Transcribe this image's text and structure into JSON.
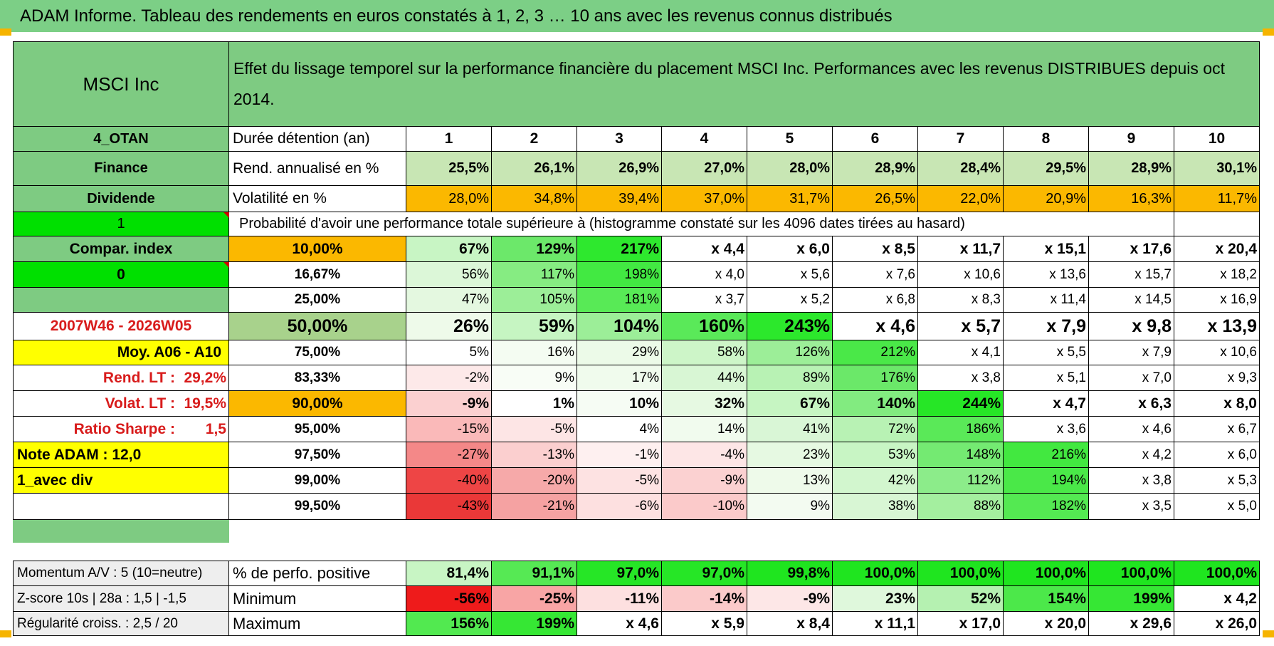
{
  "title": "ADAM Informe. Tableau des rendements en euros constatés à 1, 2, 3 … 10 ans avec les revenus connus distribués",
  "header": {
    "left": "MSCI Inc",
    "right": "Effet du lissage temporel sur la performance financière du placement MSCI Inc. Performances avec les revenus DISTRIBUES depuis oct 2014."
  },
  "side_labels": {
    "code": "4_OTAN",
    "sector": "Finance",
    "dividend": "Dividende",
    "one": "1",
    "compar": "Compar. index",
    "zero": "0",
    "blank": "",
    "period": "2007W46 - 2026W05",
    "moy": "Moy. A06 - A10",
    "rend_lt_label": "Rend. LT :",
    "rend_lt_value": "29,2%",
    "volat_lt_label": "Volat. LT :",
    "volat_lt_value": "19,5%",
    "sharpe_label": "Ratio Sharpe :",
    "sharpe_value": "1,5",
    "note": "Note ADAM : 12,0",
    "avec_div": "1_avec div"
  },
  "row_labels": {
    "duration": "Durée détention (an)",
    "rend": "Rend. annualisé en %",
    "volat": "Volatilité en %",
    "proba": "Probabilité d'avoir une performance totale supérieure à (histogramme constaté sur les 4096 dates tirées au hasard)"
  },
  "years": [
    "1",
    "2",
    "3",
    "4",
    "5",
    "6",
    "7",
    "8",
    "9",
    "10"
  ],
  "rend": [
    "25,5%",
    "26,1%",
    "26,9%",
    "27,0%",
    "28,0%",
    "28,9%",
    "28,4%",
    "29,5%",
    "28,9%",
    "30,1%"
  ],
  "volat": [
    "28,0%",
    "34,8%",
    "39,4%",
    "37,0%",
    "31,7%",
    "26,5%",
    "22,0%",
    "20,9%",
    "16,3%",
    "11,7%"
  ],
  "prob_rows": [
    {
      "p": "10,00%",
      "v": [
        "67%",
        "129%",
        "217%",
        "x 4,4",
        "x 6,0",
        "x 8,5",
        "x 11,7",
        "x 15,1",
        "x 17,6",
        "x 20,4"
      ]
    },
    {
      "p": "16,67%",
      "v": [
        "56%",
        "117%",
        "198%",
        "x 4,0",
        "x 5,6",
        "x 7,6",
        "x 10,6",
        "x 13,6",
        "x 15,7",
        "x 18,2"
      ]
    },
    {
      "p": "25,00%",
      "v": [
        "47%",
        "105%",
        "181%",
        "x 3,7",
        "x 5,2",
        "x 6,8",
        "x 8,3",
        "x 11,4",
        "x 14,5",
        "x 16,9"
      ]
    },
    {
      "p": "50,00%",
      "v": [
        "26%",
        "59%",
        "104%",
        "160%",
        "243%",
        "x 4,6",
        "x 5,7",
        "x 7,9",
        "x 9,8",
        "x 13,9"
      ]
    },
    {
      "p": "75,00%",
      "v": [
        "5%",
        "16%",
        "29%",
        "58%",
        "126%",
        "212%",
        "x 4,1",
        "x 5,5",
        "x 7,9",
        "x 10,6"
      ]
    },
    {
      "p": "83,33%",
      "v": [
        "-2%",
        "9%",
        "17%",
        "44%",
        "89%",
        "176%",
        "x 3,8",
        "x 5,1",
        "x 7,0",
        "x 9,3"
      ]
    },
    {
      "p": "90,00%",
      "v": [
        "-9%",
        "1%",
        "10%",
        "32%",
        "67%",
        "140%",
        "244%",
        "x 4,7",
        "x 6,3",
        "x 8,0"
      ]
    },
    {
      "p": "95,00%",
      "v": [
        "-15%",
        "-5%",
        "4%",
        "14%",
        "41%",
        "72%",
        "186%",
        "x 3,6",
        "x 4,6",
        "x 6,7"
      ]
    },
    {
      "p": "97,50%",
      "v": [
        "-27%",
        "-13%",
        "-1%",
        "-4%",
        "23%",
        "53%",
        "148%",
        "216%",
        "x 4,2",
        "x 6,0"
      ]
    },
    {
      "p": "99,00%",
      "v": [
        "-40%",
        "-20%",
        "-5%",
        "-9%",
        "13%",
        "42%",
        "112%",
        "194%",
        "x 3,8",
        "x 5,3"
      ]
    },
    {
      "p": "99,50%",
      "v": [
        "-43%",
        "-21%",
        "-6%",
        "-10%",
        "9%",
        "38%",
        "88%",
        "182%",
        "x 3,5",
        "x 5,0"
      ]
    }
  ],
  "bottom_rows": [
    {
      "side": "Momentum A/V : 5 (10=neutre)",
      "label": "% de perfo. positive",
      "v": [
        "81,4%",
        "91,1%",
        "97,0%",
        "97,0%",
        "99,8%",
        "100,0%",
        "100,0%",
        "100,0%",
        "100,0%",
        "100,0%"
      ]
    },
    {
      "side": "Z-score 10s | 28a : 1,5 | -1,5",
      "label": "Minimum",
      "v": [
        "-56%",
        "-25%",
        "-11%",
        "-14%",
        "-9%",
        "23%",
        "52%",
        "154%",
        "199%",
        "x 4,2"
      ]
    },
    {
      "side": "Régularité croiss. : 2,5 / 20",
      "label": "Maximum",
      "v": [
        "156%",
        "199%",
        "x 4,6",
        "x 5,9",
        "x 8,4",
        "x 11,1",
        "x 17,0",
        "x 20,0",
        "x 29,6",
        "x 26,0"
      ]
    }
  ],
  "colors": {
    "title_green": "#7ccf86",
    "header_green": "#7ecb82",
    "bright_green": "#00e000",
    "orange": "#fbb800",
    "yellow": "#ffff00",
    "light_green_rend": "#c8e6b4",
    "accent_red": "#d81c1c"
  }
}
